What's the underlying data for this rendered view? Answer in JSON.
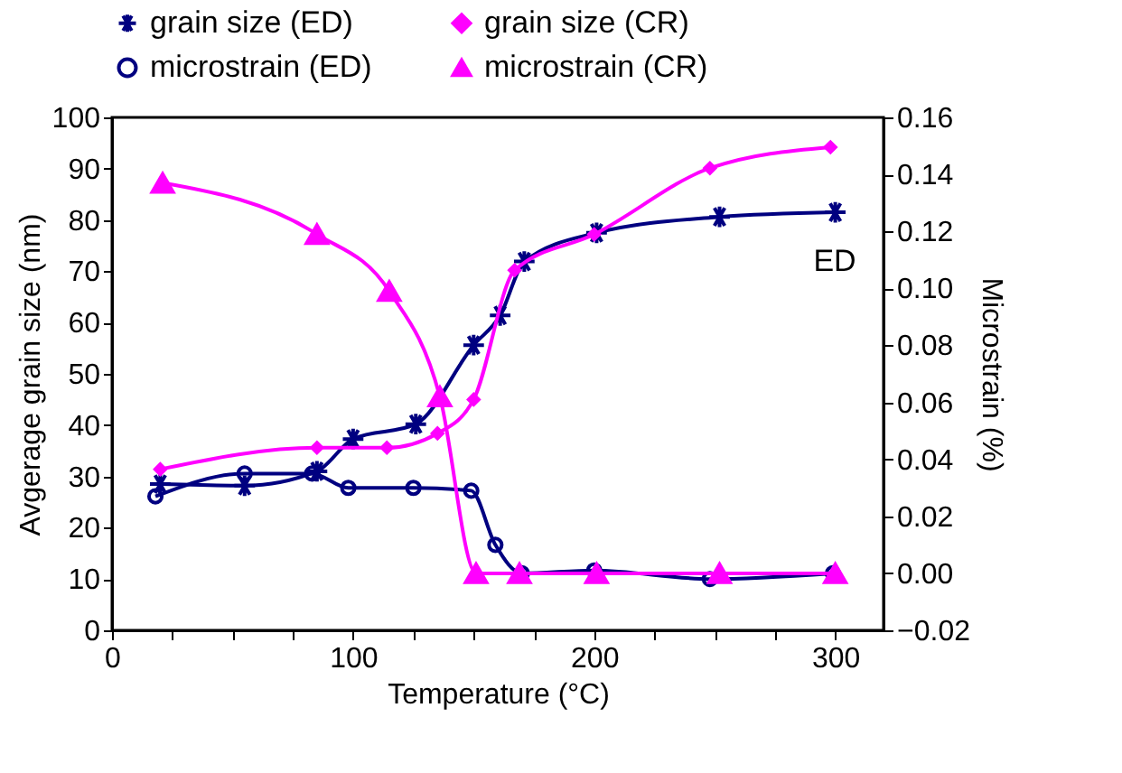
{
  "chart_data": {
    "type": "line",
    "xlabel": "Temperature (°C)",
    "ylabel": "Avgerage  grain size (nm)",
    "y2label": "Microstrain (%)",
    "xlim": [
      0,
      320
    ],
    "xticks": [
      0,
      {
        "value": 25,
        "label": null
      },
      {
        "value": 50,
        "label": null
      },
      {
        "value": 75,
        "label": null
      },
      100,
      {
        "value": 125,
        "label": null
      },
      {
        "value": 150,
        "label": null
      },
      {
        "value": 175,
        "label": null
      },
      200,
      {
        "value": 225,
        "label": null
      },
      {
        "value": 250,
        "label": null
      },
      {
        "value": 275,
        "label": null
      },
      300
    ],
    "ylim": [
      0,
      100
    ],
    "yticks": [
      0,
      10,
      20,
      30,
      40,
      50,
      60,
      70,
      80,
      90,
      100
    ],
    "y2lim": [
      -0.02,
      0.16
    ],
    "y2ticks": [
      {
        "value": -0.02,
        "label": "−0.02"
      },
      {
        "value": 0,
        "label": "0.00"
      },
      {
        "value": 0.02,
        "label": "0.02"
      },
      {
        "value": 0.04,
        "label": "0.04"
      },
      {
        "value": 0.06,
        "label": "0.06"
      },
      {
        "value": 0.08,
        "label": "0.08"
      },
      {
        "value": 0.1,
        "label": "0.10"
      },
      {
        "value": 0.12,
        "label": "0.12"
      },
      {
        "value": 0.14,
        "label": "0.14"
      },
      {
        "value": 0.16,
        "label": "0.16"
      }
    ],
    "grid": false,
    "legend": "top",
    "annotations": [
      "ED"
    ],
    "series": [
      {
        "name": "grain size (ED)",
        "color": "#000080",
        "marker": "cross",
        "x": [
          20,
          55,
          85,
          100,
          126,
          150,
          161,
          171,
          201,
          252,
          300
        ],
        "values": [
          28.5,
          28.2,
          31,
          37.3,
          40.2,
          55.6,
          61.4,
          71.9,
          77.5,
          80.6,
          81.5
        ]
      },
      {
        "name": "grain size (CR)",
        "color": "#ff00ff",
        "marker": "diamond",
        "x": [
          20,
          85,
          114,
          135,
          150,
          167,
          200,
          248,
          298
        ],
        "values": [
          31.4,
          35.6,
          35.6,
          38.4,
          45,
          70.2,
          77.2,
          90.1,
          94.2
        ]
      },
      {
        "name": "microstrain (ED)",
        "color": "#000080",
        "marker": "circle",
        "axis": "y2",
        "x": [
          18,
          55,
          83,
          98,
          125,
          149,
          159,
          170,
          200,
          248,
          299
        ],
        "values": [
          0.027,
          0.035,
          0.035,
          0.03,
          0.03,
          0.029,
          0.01,
          0.0,
          0.001,
          -0.002,
          0.0
        ]
      },
      {
        "name": "microstrain (CR)",
        "color": "#ff00ff",
        "marker": "triangle",
        "axis": "y2",
        "x": [
          21,
          85,
          115,
          136,
          151,
          169,
          201,
          252,
          300
        ],
        "values": [
          0.137,
          0.119,
          0.099,
          0.062,
          0.0,
          0.0,
          0.0,
          0.0,
          0.0
        ]
      }
    ]
  }
}
